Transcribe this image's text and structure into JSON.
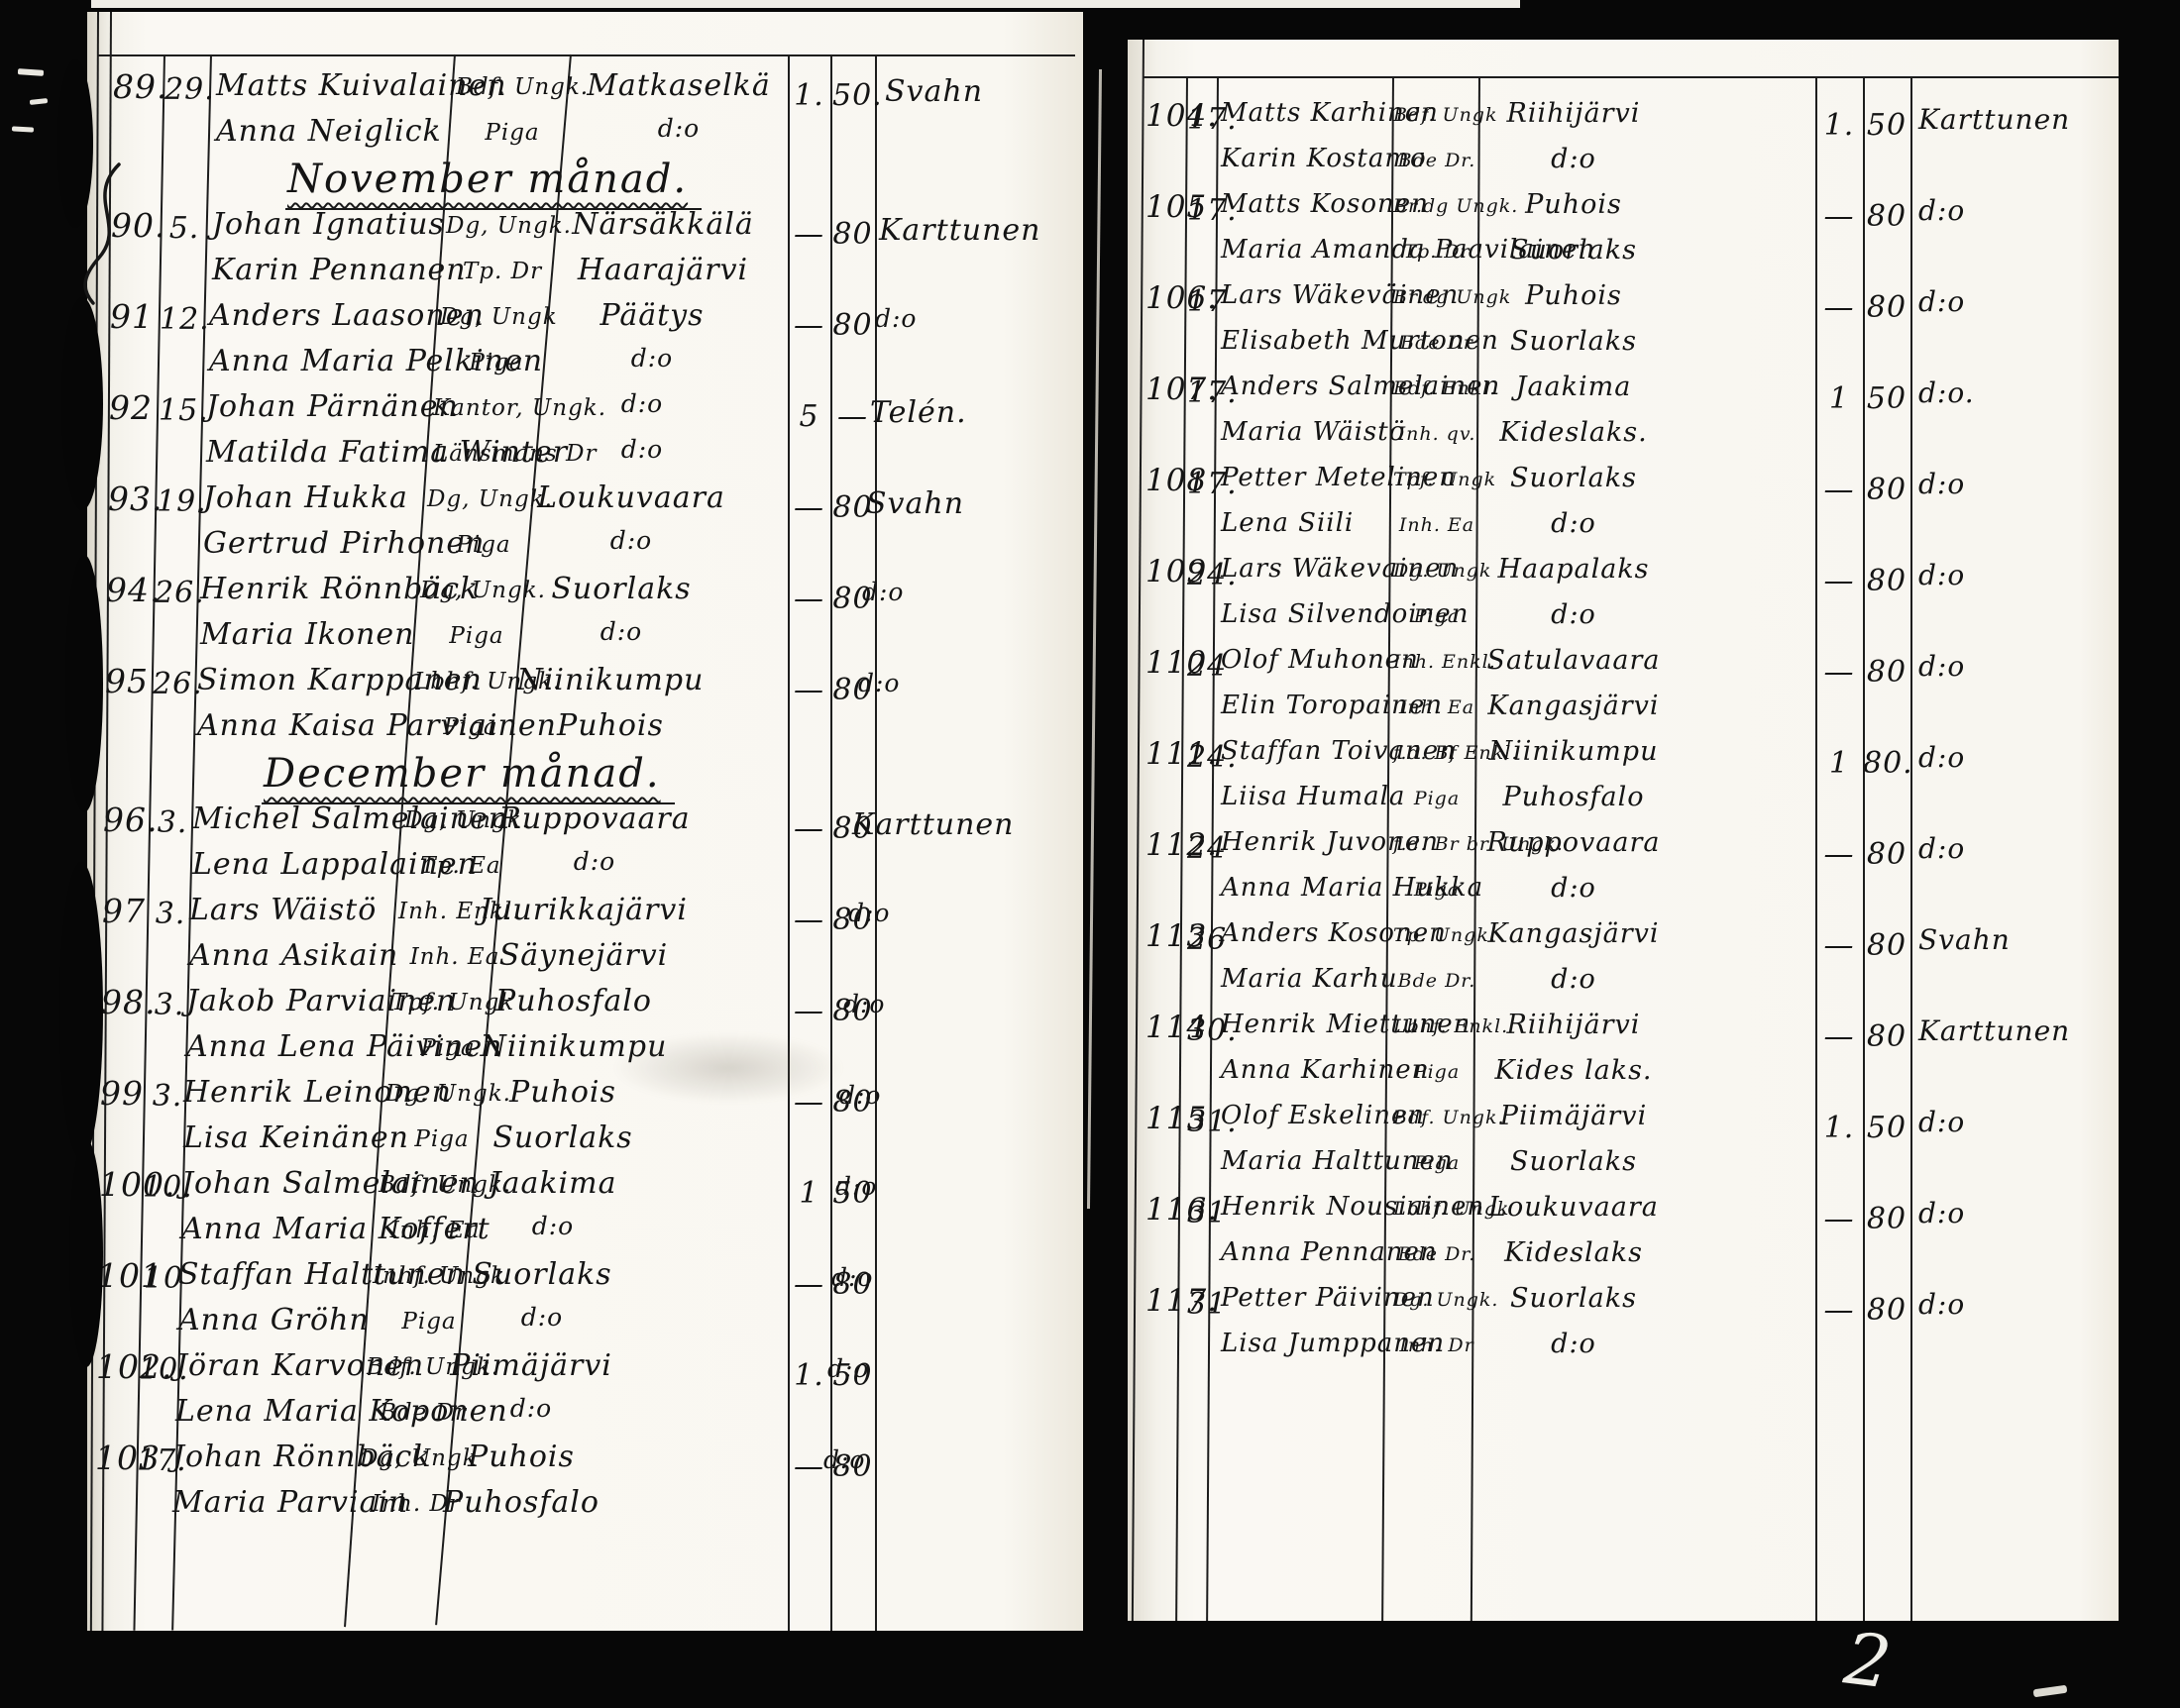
{
  "marks": {
    "corner_numeral": "2"
  },
  "pages": [
    {
      "side": "left",
      "sections": [
        {
          "month_header": "",
          "entries": [
            {
              "no": "89.",
              "day": "29.",
              "groom": "Matts Kuivalainen",
              "bride": "Anna Neiglick",
              "groom_title": "Bdf. Ungk.",
              "bride_title": "Piga",
              "groom_place": "Matkaselkä",
              "bride_place": "d:o",
              "fee1": "1.",
              "fee2": "50.",
              "officiant": "Svahn"
            }
          ]
        },
        {
          "month_header": "November månad.",
          "entries": [
            {
              "no": "90.",
              "day": "5.",
              "groom": "Johan Ignatius",
              "bride": "Karin Pennanen",
              "groom_title": "Dg, Ungk.",
              "bride_title": "Tp. Dr",
              "groom_place": "Närsäkkälä",
              "bride_place": "Haarajärvi",
              "fee1": "—",
              "fee2": "80",
              "officiant": "Karttunen"
            },
            {
              "no": "91",
              "day": "12.",
              "groom": "Anders Laasonen",
              "bride": "Anna Maria Pelkinen",
              "groom_title": "Dg, Ungk",
              "bride_title": "Piga",
              "groom_place": "Päätys",
              "bride_place": "d:o",
              "fee1": "—",
              "fee2": "80",
              "officiant": "d:o"
            },
            {
              "no": "92",
              "day": "15.",
              "groom": "Johan Pärnänen",
              "bride": "Matilda Fatima Winter",
              "groom_title": "Kantor, Ungk.",
              "bride_title": "Länsmans Dr",
              "groom_place": "d:o",
              "bride_place": "d:o",
              "fee1": "5",
              "fee2": "—",
              "officiant": "Telén."
            },
            {
              "no": "93.",
              "day": "19.",
              "groom": "Johan Hukka",
              "bride": "Gertrud Pirhonen",
              "groom_title": "Dg, Ungk.",
              "bride_title": "Piga",
              "groom_place": "Loukuvaara",
              "bride_place": "d:o",
              "fee1": "—",
              "fee2": "80",
              "officiant": "Svahn"
            },
            {
              "no": "94.",
              "day": "26.",
              "groom": "Henrik Rönnbäck",
              "bride": "Maria Ikonen",
              "groom_title": "Dg, Ungk.",
              "bride_title": "Piga",
              "groom_place": "Suorlaks",
              "bride_place": "d:o",
              "fee1": "—",
              "fee2": "80",
              "officiant": "d:o"
            },
            {
              "no": "95",
              "day": "26.",
              "groom": "Simon Karppanen",
              "bride": "Anna Kaisa Parviainen",
              "groom_title": "Lbhf. Ungk.",
              "bride_title": "Piga",
              "groom_place": "Niinikumpu",
              "bride_place": "Puhois",
              "fee1": "—",
              "fee2": "80",
              "officiant": "d:o"
            }
          ]
        },
        {
          "month_header": "December månad.",
          "entries": [
            {
              "no": "96.",
              "day": "3.",
              "groom": "Michel Salmelainen",
              "bride": "Lena Lappalainen",
              "groom_title": "Dg, Ungk.",
              "bride_title": "Tp. Ea",
              "groom_place": "Ruppovaara",
              "bride_place": "d:o",
              "fee1": "—",
              "fee2": "80",
              "officiant": "Karttunen"
            },
            {
              "no": "97",
              "day": "3.",
              "groom": "Lars Wäistö",
              "bride": "Anna Asikain",
              "groom_title": "Inh. Enkl.",
              "bride_title": "Inh. Ea",
              "groom_place": "Juurikkajärvi",
              "bride_place": "Säynejärvi",
              "fee1": "—",
              "fee2": "80",
              "officiant": "d:o"
            },
            {
              "no": "98.",
              "day": "3.",
              "groom": "Jakob Parviainen",
              "bride": "Anna Lena Päivinen",
              "groom_title": "Tpf. Ungk",
              "bride_title": "Piga",
              "groom_place": "Puhosfalo",
              "bride_place": "Niinikumpu",
              "fee1": "—",
              "fee2": "80",
              "officiant": "d:o"
            },
            {
              "no": "99",
              "day": "3.",
              "groom": "Henrik Leinonen",
              "bride": "Lisa Keinänen",
              "groom_title": "Dg. Ungk.",
              "bride_title": "Piga",
              "groom_place": "Puhois",
              "bride_place": "Suorlaks",
              "fee1": "—",
              "fee2": "80",
              "officiant": "d:o"
            },
            {
              "no": "100.",
              "day": "10.",
              "groom": "Johan Salmelainen",
              "bride": "Anna Maria Koffert",
              "groom_title": "Bdf. Ungk.",
              "bride_title": "Inh. Ea",
              "groom_place": "Jaakima",
              "bride_place": "d:o",
              "fee1": "1",
              "fee2": "50",
              "officiant": "d:o"
            },
            {
              "no": "101",
              "day": "10",
              "groom": "Staffan Halttunen",
              "bride": "Anna Gröhn",
              "groom_title": "Inhf. Ungk",
              "bride_title": "Piga",
              "groom_place": "Suorlaks",
              "bride_place": "d:o",
              "fee1": "—",
              "fee2": "80",
              "officiant": "d:o"
            },
            {
              "no": "102.",
              "day": "10.",
              "groom": "Jöran Karvonen",
              "bride": "Lena Maria Koponen",
              "groom_title": "Bdf. Ungk.",
              "bride_title": "Bde Dr",
              "groom_place": "Piimäjärvi",
              "bride_place": "d:o",
              "fee1": "1.",
              "fee2": "50",
              "officiant": "d:o"
            },
            {
              "no": "103",
              "day": "17.",
              "groom": "Johan Rönnbäck",
              "bride": "Maria Parviain",
              "groom_title": "Dg, Ungk",
              "bride_title": "Inh. Dr",
              "groom_place": "Puhois",
              "bride_place": "Puhosfalo",
              "fee1": "—",
              "fee2": "80",
              "officiant": "d:o"
            }
          ]
        }
      ]
    },
    {
      "side": "right",
      "sections": [
        {
          "month_header": "",
          "entries": [
            {
              "no": "104.",
              "day": "17.",
              "groom": "Matts Karhinen",
              "bride": "Karin Kostamo",
              "groom_title": "Bdf. Ungk",
              "bride_title": "Bde Dr.",
              "groom_place": "Riihijärvi",
              "bride_place": "d:o",
              "fee1": "1.",
              "fee2": "50",
              "officiant": "Karttunen"
            },
            {
              "no": "105",
              "day": "17.",
              "groom": "Matts Kosonen",
              "bride": "Maria Amanda Paavilainen",
              "groom_title": "Br.dg Ungk.",
              "bride_title": "Tp. Dr",
              "groom_place": "Puhois",
              "bride_place": "Suorlaks",
              "fee1": "—",
              "fee2": "80",
              "officiant": "d:o"
            },
            {
              "no": "106.",
              "day": "17",
              "groom": "Lars Wäkeväinen",
              "bride": "Elisabeth Murtonen",
              "groom_title": "Br.dg Ungk",
              "bride_title": "Bde Dr",
              "groom_place": "Puhois",
              "bride_place": "Suorlaks",
              "fee1": "—",
              "fee2": "80",
              "officiant": "d:o"
            },
            {
              "no": "107.",
              "day": "17.",
              "groom": "Anders Salmelainen",
              "bride": "Maria Wäistö",
              "groom_title": "Bdf. Enkl.",
              "bride_title": "Inh. qv.",
              "groom_place": "Jaakima",
              "bride_place": "Kideslaks.",
              "fee1": "1",
              "fee2": "50",
              "officiant": "d:o."
            },
            {
              "no": "108",
              "day": "17.",
              "groom": "Petter Metelinen",
              "bride": "Lena Siili",
              "groom_title": "Tpf. Ungk",
              "bride_title": "Inh. Ea",
              "groom_place": "Suorlaks",
              "bride_place": "d:o",
              "fee1": "—",
              "fee2": "80",
              "officiant": "d:o"
            },
            {
              "no": "109",
              "day": "24.",
              "groom": "Lars Wäkevainen",
              "bride": "Lisa Silvendoinen",
              "groom_title": "Dg. Ungk",
              "bride_title": "Piga",
              "groom_place": "Haapalaks",
              "bride_place": "d:o",
              "fee1": "—",
              "fee2": "80",
              "officiant": "d:o"
            },
            {
              "no": "110",
              "day": "24",
              "groom": "Olof Muhonen",
              "bride": "Elin Toropainen",
              "groom_title": "Inh. Enkl.",
              "bride_title": "Inh. Ea",
              "groom_place": "Satulavaara",
              "bride_place": "Kangasjärvi",
              "fee1": "—",
              "fee2": "80",
              "officiant": "d:o"
            },
            {
              "no": "111.",
              "day": "24.",
              "groom": "Staffan Toivanen",
              "bride": "Liisa Humala",
              "groom_title": "f.d. Bf Enkl.",
              "bride_title": "Piga",
              "groom_place": "Niinikumpu",
              "bride_place": "Puhosfalo",
              "fee1": "1",
              "fee2": "80.",
              "officiant": "d:o"
            },
            {
              "no": "112.",
              "day": "24",
              "groom": "Henrik Juvonen",
              "bride": "Anna Maria Hukka",
              "groom_title": "f.d. Br br. Ungk.",
              "bride_title": "Piga",
              "groom_place": "Ruppovaara",
              "bride_place": "d:o",
              "fee1": "—",
              "fee2": "80",
              "officiant": "d:o"
            },
            {
              "no": "113",
              "day": "26",
              "groom": "Anders Kosonen",
              "bride": "Maria Karhu",
              "groom_title": "Tp. Ungk.",
              "bride_title": "Bde Dr.",
              "groom_place": "Kangasjärvi",
              "bride_place": "d:o",
              "fee1": "—",
              "fee2": "80",
              "officiant": "Svahn"
            },
            {
              "no": "114",
              "day": "30.",
              "groom": "Henrik Miettunen",
              "bride": "Anna Karhinen",
              "groom_title": "Lbhf. Enkl.",
              "bride_title": "Piga",
              "groom_place": "Riihijärvi",
              "bride_place": "Kides laks.",
              "fee1": "—",
              "fee2": "80",
              "officiant": "Karttunen"
            },
            {
              "no": "115",
              "day": "31.",
              "groom": "Olof Eskelinen",
              "bride": "Maria Halttunen",
              "groom_title": "Bdf. Ungk.",
              "bride_title": "Piga",
              "groom_place": "Piimäjärvi",
              "bride_place": "Suorlaks",
              "fee1": "1.",
              "fee2": "50",
              "officiant": "d:o"
            },
            {
              "no": "116.",
              "day": "31",
              "groom": "Henrik Nousiainen",
              "bride": "Anna Pennanen",
              "groom_title": "Lbhf. Ungk",
              "bride_title": "Bde Dr.",
              "groom_place": "Loukuvaara",
              "bride_place": "Kideslaks",
              "fee1": "—",
              "fee2": "80",
              "officiant": "d:o"
            },
            {
              "no": "117.",
              "day": "31",
              "groom": "Petter Päivinen",
              "bride": "Lisa Jumppanen",
              "groom_title": "Dg. Ungk.",
              "bride_title": "Inh. Dr",
              "groom_place": "Suorlaks",
              "bride_place": "d:o",
              "fee1": "—",
              "fee2": "80",
              "officiant": "d:o"
            }
          ]
        }
      ]
    }
  ]
}
